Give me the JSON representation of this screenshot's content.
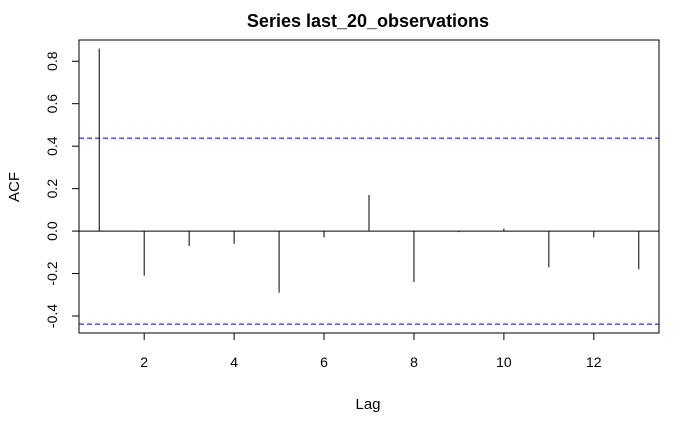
{
  "chart_data": {
    "type": "bar",
    "title": "Series last_20_observations",
    "xlabel": "Lag",
    "ylabel": "ACF",
    "x": [
      1,
      2,
      3,
      4,
      5,
      6,
      7,
      8,
      9,
      10,
      11,
      12,
      13
    ],
    "values": [
      0.86,
      -0.21,
      -0.07,
      -0.06,
      -0.29,
      -0.03,
      0.17,
      -0.24,
      -0.005,
      0.012,
      -0.17,
      -0.03,
      -0.18
    ],
    "xlim": [
      0.55,
      13.45
    ],
    "ylim": [
      -0.48,
      0.9
    ],
    "x_ticks": [
      2,
      4,
      6,
      8,
      10,
      12
    ],
    "y_ticks": [
      -0.4,
      -0.2,
      0.0,
      0.2,
      0.4,
      0.6,
      0.8
    ],
    "y_tick_labels": [
      "-0.4",
      "-0.2",
      "0.0",
      "0.2",
      "0.4",
      "0.6",
      "0.8"
    ],
    "confidence_bounds": [
      0.438,
      -0.438
    ],
    "zero_line": true,
    "grid": false,
    "colors": {
      "spike": "#000000",
      "confidence": "#0000cc",
      "axis": "#000000"
    }
  }
}
